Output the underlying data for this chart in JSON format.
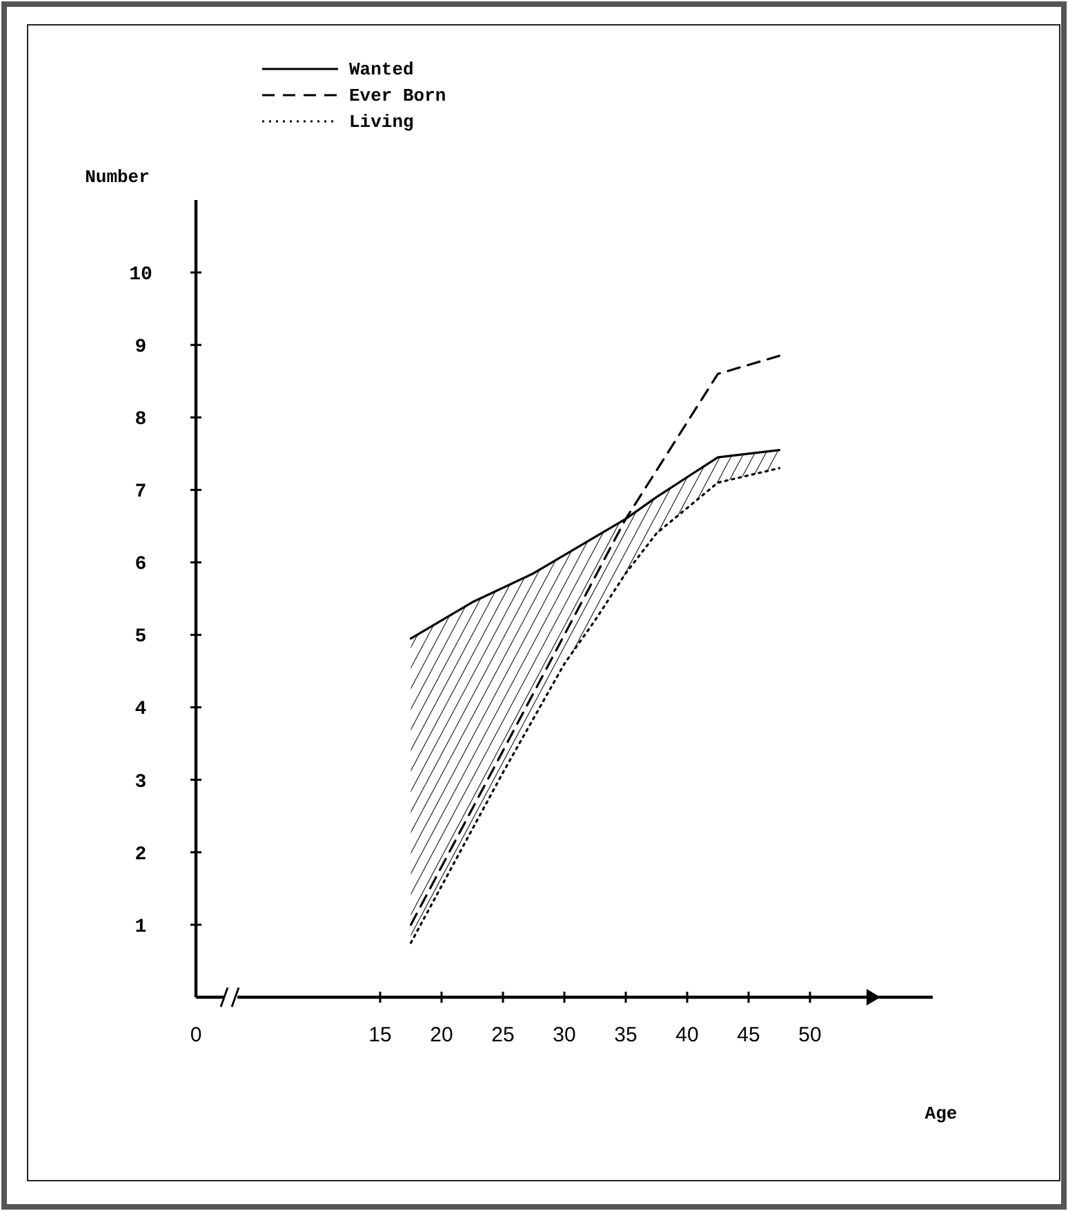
{
  "chart_data": {
    "type": "line",
    "xlabel": "Age",
    "ylabel": "Number",
    "xlim": [
      0,
      60
    ],
    "ylim": [
      0,
      11
    ],
    "xticks": [
      0,
      15,
      20,
      25,
      30,
      35,
      40,
      45,
      50
    ],
    "yticks": [
      1,
      2,
      3,
      4,
      5,
      6,
      7,
      8,
      9,
      10
    ],
    "legend": "top left",
    "grid": false,
    "marker": "none",
    "series": [
      {
        "name": "Wanted",
        "color": "#000000",
        "line_style": "solid",
        "x": [
          17.5,
          20,
          22.5,
          25,
          27.5,
          30,
          32.5,
          35,
          37.5,
          42.5,
          47.5
        ],
        "values": [
          4.95,
          5.2,
          5.45,
          5.65,
          5.85,
          6.1,
          6.35,
          6.6,
          6.9,
          7.45,
          7.55
        ],
        "lower": [
          0.75,
          1.6,
          2.3,
          3.1,
          3.9,
          4.6,
          5.2,
          5.85,
          6.4,
          7.1,
          7.3
        ],
        "upper": [
          4.95,
          5.2,
          5.45,
          5.65,
          5.85,
          6.1,
          6.35,
          6.6,
          6.9,
          7.45,
          7.55
        ]
      },
      {
        "name": "Ever Born",
        "color": "#000000",
        "line_style": "dashed",
        "x": [
          17.5,
          25,
          30,
          35,
          42.5,
          47.5
        ],
        "values": [
          1.0,
          3.4,
          5.0,
          6.6,
          8.6,
          8.85
        ]
      },
      {
        "name": "Living",
        "color": "#000000",
        "line_style": "dotted",
        "x": [
          17.5,
          25,
          30,
          32.5,
          35,
          37.5,
          42.5,
          47.5
        ],
        "values": [
          0.75,
          3.1,
          4.6,
          5.2,
          5.85,
          6.4,
          7.1,
          7.3
        ]
      }
    ]
  }
}
